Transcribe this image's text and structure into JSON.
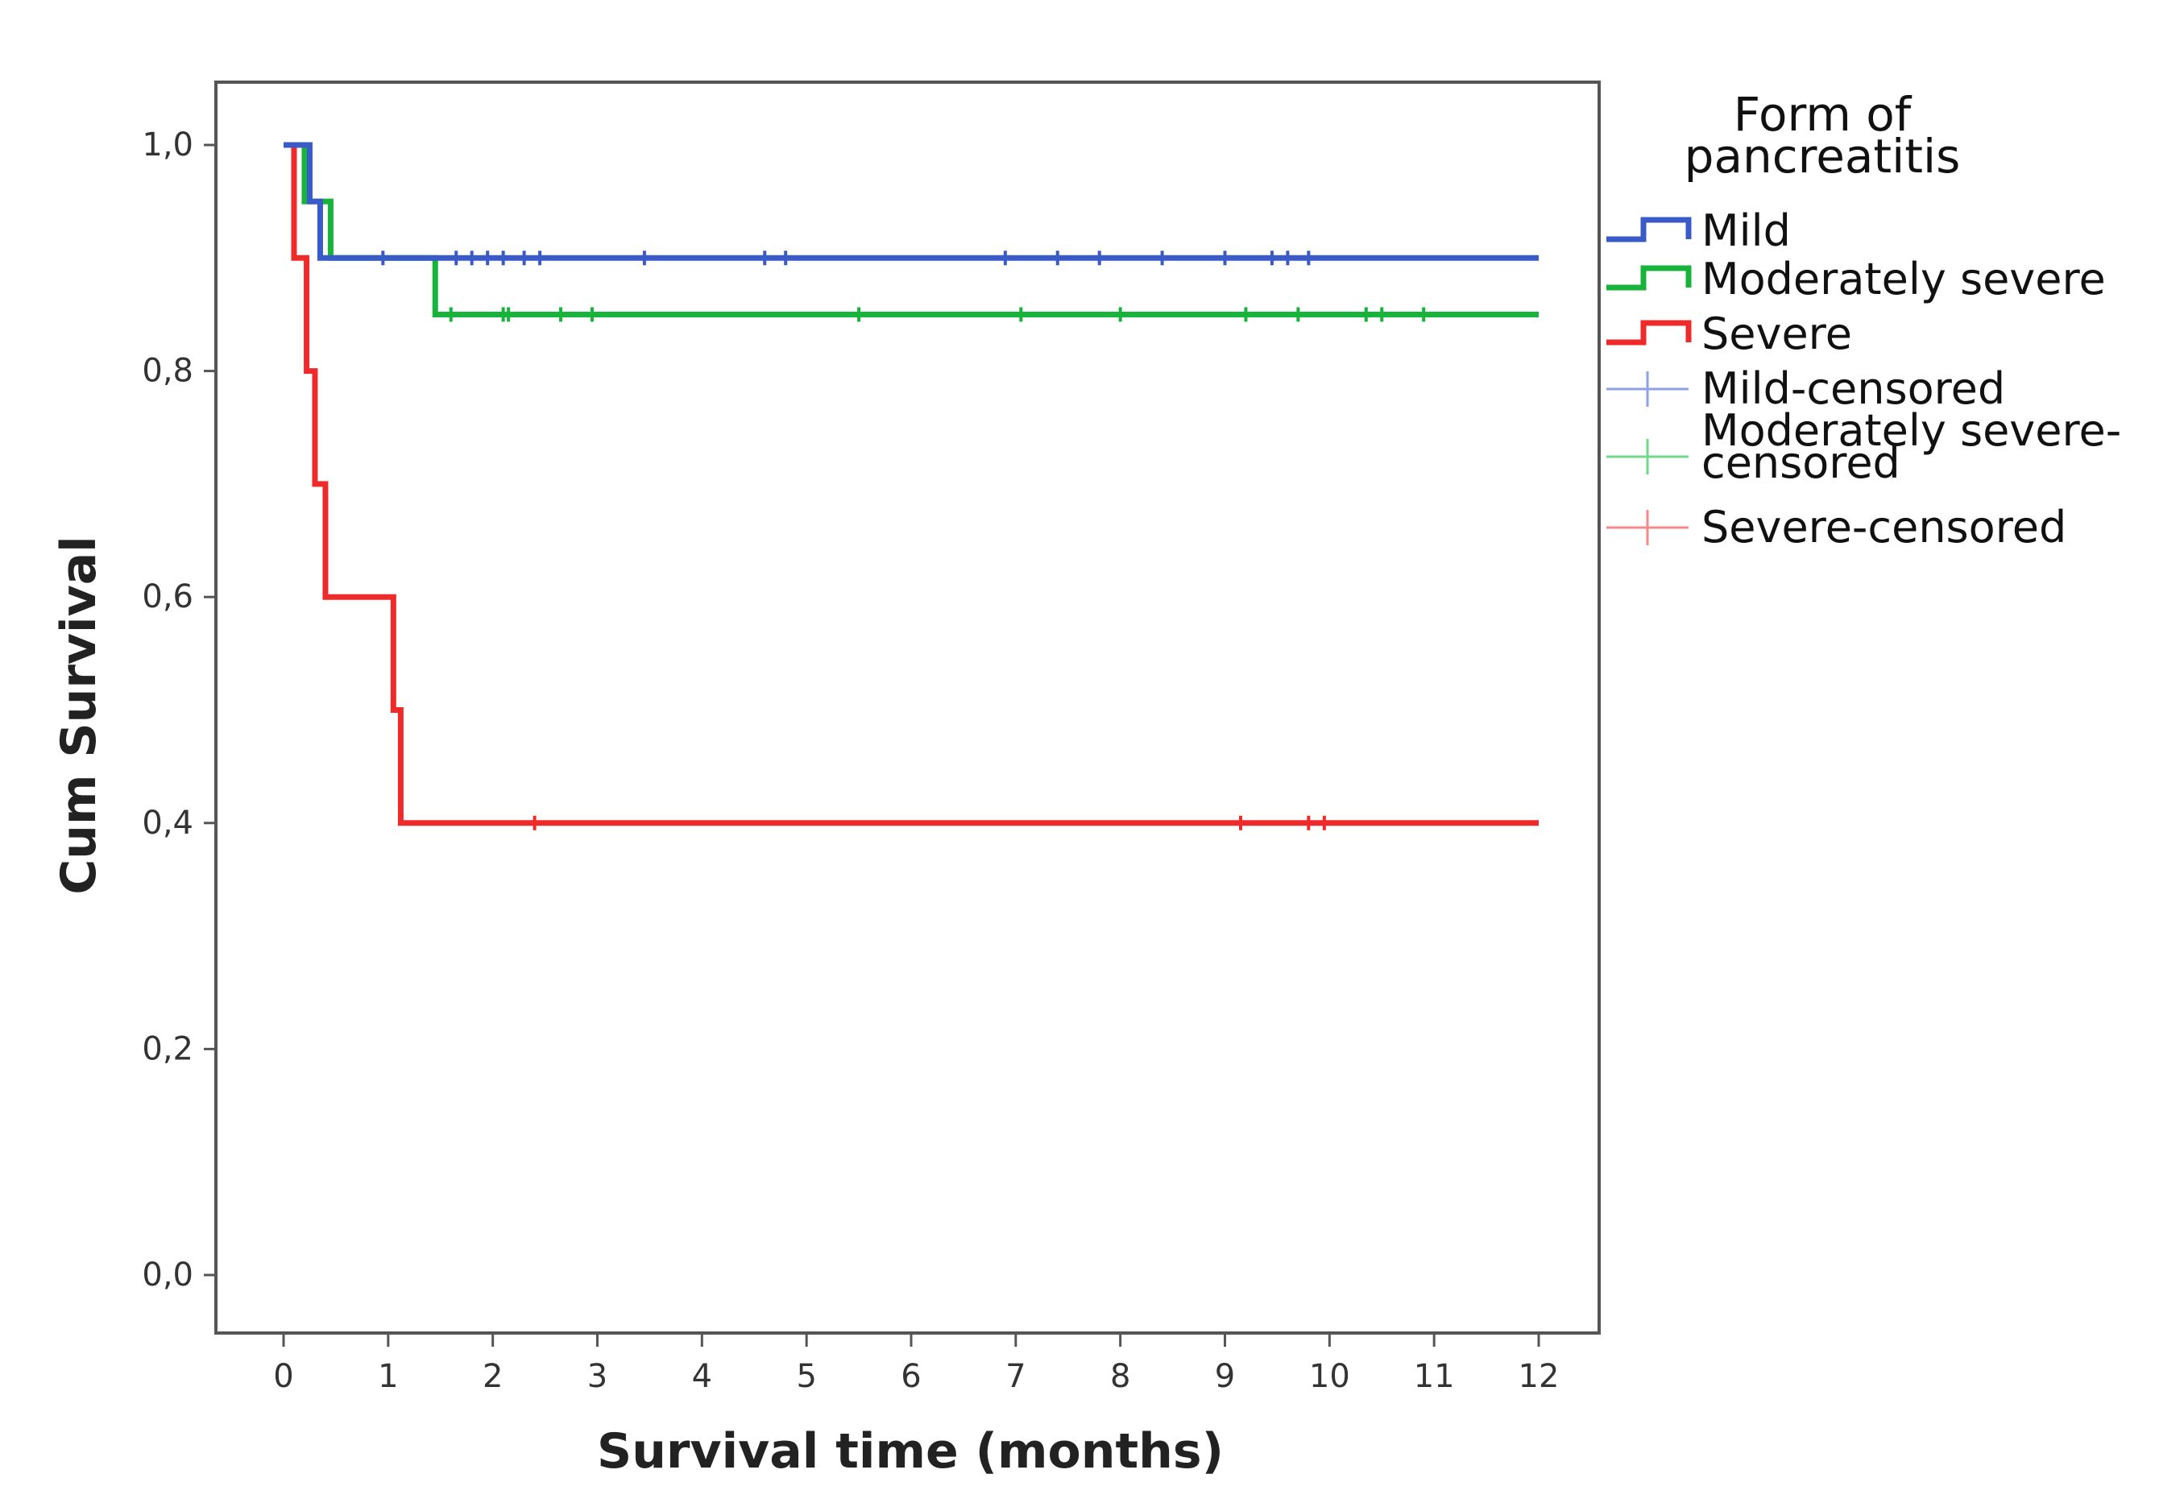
{
  "chart_data": {
    "type": "line",
    "subtype": "kaplan-meier",
    "xlabel": "Survival time (months)",
    "ylabel": "Cum Survival",
    "xlim": [
      0,
      12
    ],
    "ylim": [
      0,
      1
    ],
    "x_ticks": [
      "0",
      "1",
      "2",
      "3",
      "4",
      "5",
      "6",
      "7",
      "8",
      "9",
      "10",
      "11",
      "12"
    ],
    "y_ticks": [
      "0,0",
      "0,2",
      "0,4",
      "0,6",
      "0,8",
      "1,0"
    ],
    "y_tick_values": [
      0,
      0.2,
      0.4,
      0.6,
      0.8,
      1.0
    ],
    "grid": false,
    "legend": {
      "title": "Form of pancreatitis",
      "title_lines": [
        "Form of",
        "pancreatitis"
      ],
      "position": "right",
      "entries": [
        {
          "label": "Mild",
          "kind": "line",
          "color": "#3a5bc7"
        },
        {
          "label": "Moderately severe",
          "kind": "line",
          "color": "#18b33a"
        },
        {
          "label": "Severe",
          "kind": "line",
          "color": "#ee2a2a"
        },
        {
          "label": "Mild-censored",
          "kind": "censor",
          "color": "#8ea3e6"
        },
        {
          "label": "Moderately severe-censored",
          "label_lines": [
            "Moderately severe-",
            "censored"
          ],
          "kind": "censor",
          "color": "#6ed98a"
        },
        {
          "label": "Severe-censored",
          "kind": "censor",
          "color": "#f58a8a"
        }
      ]
    },
    "series": [
      {
        "name": "Mild",
        "color": "#3a5bc7",
        "steps": [
          [
            0,
            1.0
          ],
          [
            0.25,
            0.95
          ],
          [
            0.35,
            0.9
          ],
          [
            12,
            0.9
          ]
        ],
        "censored": [
          0.95,
          1.65,
          1.8,
          1.95,
          2.1,
          2.3,
          2.45,
          3.45,
          4.6,
          4.8,
          6.9,
          7.4,
          7.8,
          8.4,
          9.0,
          9.45,
          9.6,
          9.8
        ]
      },
      {
        "name": "Moderately severe",
        "color": "#18b33a",
        "steps": [
          [
            0,
            1.0
          ],
          [
            0.2,
            0.95
          ],
          [
            0.45,
            0.9
          ],
          [
            1.45,
            0.85
          ],
          [
            12,
            0.85
          ]
        ],
        "censored": [
          1.6,
          2.1,
          2.15,
          2.65,
          2.95,
          5.5,
          7.05,
          8.0,
          9.2,
          9.7,
          10.35,
          10.5,
          10.9
        ]
      },
      {
        "name": "Severe",
        "color": "#ee2a2a",
        "steps": [
          [
            0,
            1.0
          ],
          [
            0.1,
            0.9
          ],
          [
            0.22,
            0.8
          ],
          [
            0.3,
            0.7
          ],
          [
            0.4,
            0.6
          ],
          [
            1.05,
            0.5
          ],
          [
            1.12,
            0.4
          ],
          [
            12,
            0.4
          ]
        ],
        "censored": [
          2.4,
          9.15,
          9.8,
          9.95
        ]
      }
    ]
  }
}
